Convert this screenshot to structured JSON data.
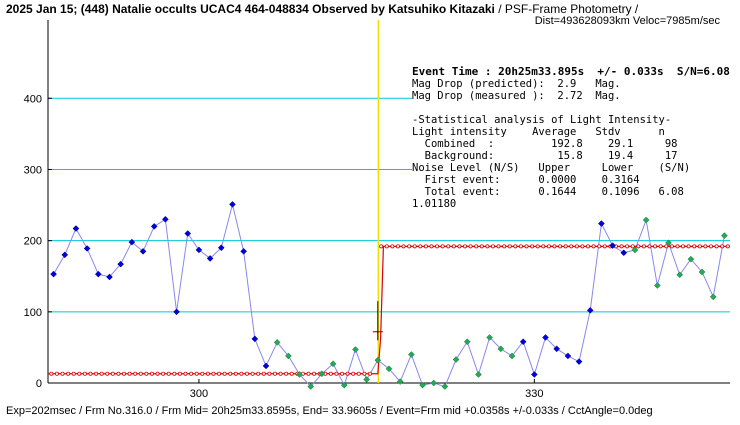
{
  "header": {
    "title_bold": "2025 Jan 15; (448) Natalie occults UCAC4 464-048834 Observed by Katsuhiko Kitazaki",
    "title_rest": " / PSF-Frame Photometry /",
    "line2": "Dist=493628093km Veloc=7985m/sec"
  },
  "footer": {
    "text": "Exp=202msec / Frm No.316.0 / Frm Mid= 20h25m33.8595s, End= 33.9605s / Event=Frm mid +0.0358s +/-0.033s / CctAngle=0.0deg"
  },
  "stats": {
    "event_time": "Event Time : 20h25m33.895s  +/- 0.033s  S/N=6.08",
    "drop_pred": "Mag Drop (predicted):  2.9   Mag.",
    "drop_meas": "Mag Drop (measured ):  2.72  Mag.",
    "stat_title": "-Statistical analysis of Light Intensity-",
    "col_header": "Light intensity    Average   Stdv      n",
    "combined": "  Combined  :         192.8    29.1     98",
    "background": "  Background:          15.8    19.4     17",
    "noise_header": "Noise Level (N/S)   Upper     Lower    (S/N)",
    "first_event": "  First event:      0.0000    0.3164",
    "total_event": "  Total event:      0.1644    0.1096   6.08",
    "ratio": "1.01180"
  },
  "chart_data": {
    "type": "line",
    "title": "2025 Jan 15; (448) Natalie occults UCAC4 464-048834 Observed by Katsuhiko Kitazaki / PSF-Frame Photometry /",
    "xlabel": "",
    "ylabel": "",
    "xlim": [
      286.5,
      347.5
    ],
    "ylim": [
      0,
      510
    ],
    "x_ticks": [
      300,
      330
    ],
    "y_ticks": [
      0,
      100,
      200,
      300,
      400
    ],
    "grid": "horizontal cyan lines at 100, 200, 300, 400",
    "event_frame": 316.0,
    "background_level": 13,
    "signal_level": 192,
    "colors": {
      "blue_points": "#0000dd",
      "green_points": "#22aa55",
      "connect_line": "#8888ee",
      "model_line": "#dd0000",
      "grid": "#00c8d8",
      "event_line": "#f0e000"
    },
    "series": [
      {
        "marker": "blue diamond",
        "x": [
          287,
          288,
          289,
          290,
          291,
          292,
          293,
          294,
          295,
          296,
          297,
          298,
          299,
          300,
          301,
          302,
          303
        ],
        "y": [
          153,
          180,
          217,
          189,
          153,
          149,
          167,
          198,
          185,
          220,
          230,
          100,
          210,
          187,
          175,
          190,
          251
        ]
      },
      {
        "marker": "blue diamond",
        "x": [
          304,
          305,
          306
        ],
        "y": [
          185,
          62,
          24
        ]
      },
      {
        "marker": "green diamond",
        "x": [
          307,
          308,
          309,
          310,
          311,
          312,
          313,
          314,
          315,
          316,
          317,
          318,
          319,
          320,
          321,
          322,
          323,
          324,
          325,
          326,
          327,
          328
        ],
        "y": [
          57,
          38,
          12,
          -5,
          13,
          27,
          -3,
          47,
          5,
          32,
          20,
          2,
          40,
          -3,
          0,
          -5,
          33,
          58,
          12,
          64,
          48,
          38
        ]
      },
      {
        "marker": "blue diamond",
        "x": [
          329,
          330,
          331,
          332,
          333,
          334,
          335
        ],
        "y": [
          58,
          12,
          64,
          48,
          38,
          30,
          102
        ]
      },
      {
        "marker": "blue diamond",
        "x": [
          336,
          337,
          338
        ],
        "y": [
          224,
          193,
          183
        ]
      },
      {
        "marker": "green diamond",
        "x": [
          339,
          340,
          341,
          342,
          343,
          344,
          345,
          346,
          347
        ],
        "y": [
          187,
          229,
          137,
          197,
          152,
          174,
          156,
          121,
          207
        ]
      }
    ]
  }
}
